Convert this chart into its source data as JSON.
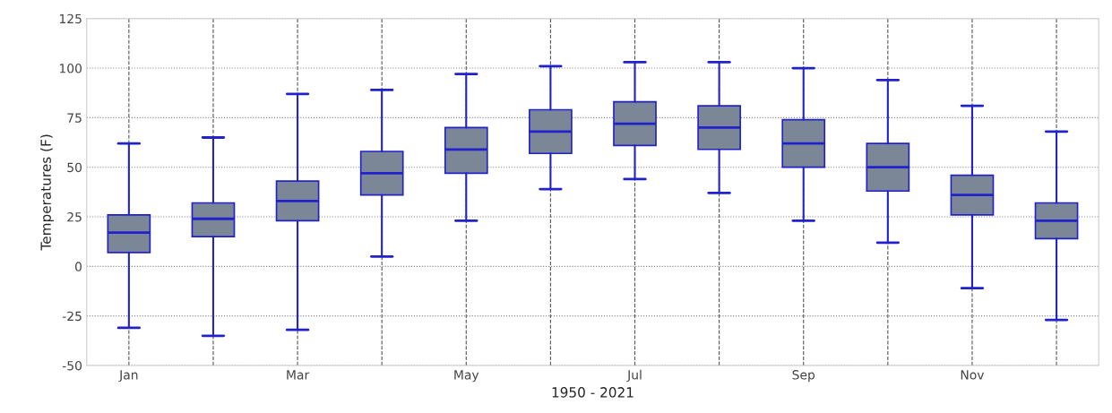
{
  "chart_data": {
    "type": "box",
    "xlabel": "1950 - 2021",
    "ylabel": "Temperatures (F)",
    "categories": [
      "Jan",
      null,
      "Mar",
      null,
      "May",
      null,
      "Jul",
      null,
      "Sep",
      null,
      "Nov",
      null
    ],
    "boxes": [
      {
        "low": -31,
        "q1": 7,
        "median": 17,
        "q3": 26,
        "high": 62
      },
      {
        "low": -35,
        "q1": 15,
        "median": 24,
        "q3": 32,
        "high": 65
      },
      {
        "low": -32,
        "q1": 23,
        "median": 33,
        "q3": 43,
        "high": 87
      },
      {
        "low": 5,
        "q1": 36,
        "median": 47,
        "q3": 58,
        "high": 89
      },
      {
        "low": 23,
        "q1": 47,
        "median": 59,
        "q3": 70,
        "high": 97
      },
      {
        "low": 39,
        "q1": 57,
        "median": 68,
        "q3": 79,
        "high": 101
      },
      {
        "low": 44,
        "q1": 61,
        "median": 72,
        "q3": 83,
        "high": 103
      },
      {
        "low": 37,
        "q1": 59,
        "median": 70,
        "q3": 81,
        "high": 103
      },
      {
        "low": 23,
        "q1": 50,
        "median": 62,
        "q3": 74,
        "high": 100
      },
      {
        "low": 12,
        "q1": 38,
        "median": 50,
        "q3": 62,
        "high": 94
      },
      {
        "low": -11,
        "q1": 26,
        "median": 36,
        "q3": 46,
        "high": 81
      },
      {
        "low": -27,
        "q1": 14,
        "median": 23,
        "q3": 32,
        "high": 68
      }
    ],
    "color": "#7b8797",
    "ylim": [
      -50,
      125
    ],
    "yticks": [
      -50,
      -25,
      0,
      25,
      50,
      75,
      100,
      125
    ],
    "grid": true
  }
}
